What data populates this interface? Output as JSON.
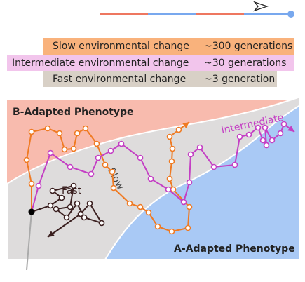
{
  "legend": {
    "rows": [
      {
        "label": "Slow environmental change",
        "generations": "~300 generations"
      },
      {
        "label": "Intermediate environmental change",
        "generations": "~30 generations"
      },
      {
        "label": "Fast environmental change",
        "generations": "~3 generation"
      }
    ]
  },
  "panel": {
    "top_label": "B-Adapted Phenotype",
    "bottom_label": "A-Adapted Phenotype",
    "path_labels": {
      "slow": "Slow",
      "fast": "Fast",
      "intermediate": "Intermediate"
    }
  }
}
